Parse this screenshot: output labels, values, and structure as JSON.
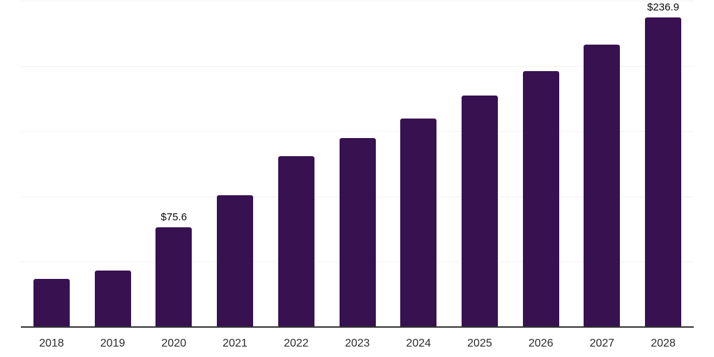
{
  "chart_data": {
    "type": "bar",
    "title": "",
    "xlabel": "",
    "ylabel": "",
    "categories": [
      "2018",
      "2019",
      "2020",
      "2021",
      "2022",
      "2023",
      "2024",
      "2025",
      "2026",
      "2027",
      "2028"
    ],
    "values": [
      36.2,
      42.6,
      75.6,
      100.3,
      130.2,
      144.3,
      159.0,
      176.6,
      195.3,
      215.6,
      236.9
    ],
    "data_labels": [
      "",
      "",
      "$75.6",
      "",
      "",
      "",
      "",
      "",
      "",
      "",
      "$236.9"
    ],
    "ylim": [
      0,
      250
    ],
    "gridline_step": 50,
    "grid": true,
    "legend": "none",
    "colors": {
      "bar": "#371150",
      "gridline": "#f2f2f2",
      "axis_line": "#333333",
      "data_label": "#0a0a0a",
      "tick_label": "#2b2b2b",
      "background": "#ffffff"
    }
  }
}
